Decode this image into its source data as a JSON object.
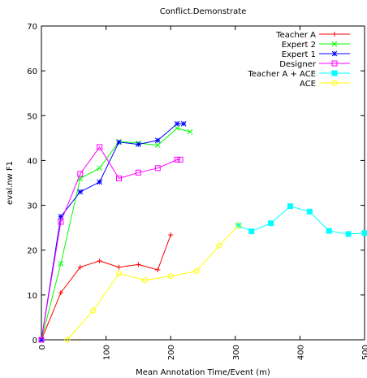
{
  "chart_data": {
    "type": "line",
    "title": "Conflict.Demonstrate",
    "xlabel": "Mean Annotation Time/Event (m)",
    "ylabel": "eval.nw F1",
    "xlim": [
      0,
      500
    ],
    "ylim": [
      0,
      70
    ],
    "xticks": [
      0,
      100,
      200,
      300,
      400,
      500
    ],
    "yticks": [
      0,
      10,
      20,
      30,
      40,
      50,
      60,
      70
    ],
    "grid": false,
    "legend_position": "top-right",
    "series": [
      {
        "name": "Teacher A",
        "color": "#ff0000",
        "marker": "plus",
        "points": [
          [
            0,
            0
          ],
          [
            30,
            10.5
          ],
          [
            60,
            16.2
          ],
          [
            90,
            17.6
          ],
          [
            120,
            16.2
          ],
          [
            150,
            16.8
          ],
          [
            180,
            15.6
          ],
          [
            200,
            23.4
          ]
        ]
      },
      {
        "name": "Expert 2",
        "color": "#00ff00",
        "marker": "x",
        "points": [
          [
            0,
            0
          ],
          [
            30,
            17
          ],
          [
            60,
            36
          ],
          [
            90,
            38.3
          ],
          [
            120,
            44.2
          ],
          [
            150,
            43.9
          ],
          [
            180,
            43.4
          ],
          [
            210,
            47.2
          ],
          [
            230,
            46.4
          ]
        ]
      },
      {
        "name": "Expert 1",
        "color": "#0000ff",
        "marker": "star",
        "points": [
          [
            0,
            0
          ],
          [
            30,
            27.5
          ],
          [
            60,
            33
          ],
          [
            90,
            35.2
          ],
          [
            120,
            44.1
          ],
          [
            150,
            43.6
          ],
          [
            180,
            44.5
          ],
          [
            210,
            48.2
          ],
          [
            220,
            48.2
          ]
        ]
      },
      {
        "name": "Designer",
        "color": "#ff00ff",
        "marker": "square",
        "points": [
          [
            0,
            0
          ],
          [
            30,
            26.3
          ],
          [
            60,
            37
          ],
          [
            90,
            43
          ],
          [
            120,
            36
          ],
          [
            150,
            37.3
          ],
          [
            180,
            38.3
          ],
          [
            210,
            40.2
          ],
          [
            215,
            40.2
          ]
        ]
      },
      {
        "name": "Teacher A + ACE",
        "color": "#00ffff",
        "marker": "filled-square",
        "points": [
          [
            305,
            25.5
          ],
          [
            325,
            24.2
          ],
          [
            355,
            26
          ],
          [
            385,
            29.8
          ],
          [
            415,
            28.6
          ],
          [
            445,
            24.3
          ],
          [
            475,
            23.6
          ],
          [
            500,
            23.8
          ]
        ]
      },
      {
        "name": "ACE",
        "color": "#ffff00",
        "marker": "circle",
        "points": [
          [
            40,
            0
          ],
          [
            80,
            6.5
          ],
          [
            120,
            14.8
          ],
          [
            160,
            13.3
          ],
          [
            200,
            14.2
          ],
          [
            240,
            15.3
          ],
          [
            275,
            21
          ],
          [
            305,
            25.5
          ]
        ]
      }
    ]
  }
}
